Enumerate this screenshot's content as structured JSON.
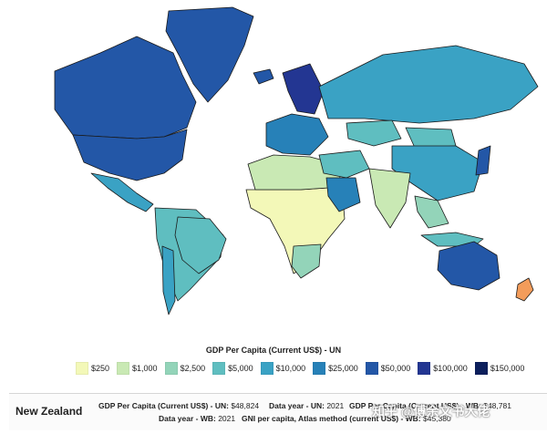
{
  "map": {
    "legend_title": "GDP Per Capita (Current US$) - UN",
    "legend": [
      {
        "label": "$250",
        "color": "#f3f8b8"
      },
      {
        "label": "$1,000",
        "color": "#c9e9b4"
      },
      {
        "label": "$2,500",
        "color": "#93d4b9"
      },
      {
        "label": "$5,000",
        "color": "#5fbec0"
      },
      {
        "label": "$10,000",
        "color": "#3aa2c4"
      },
      {
        "label": "$25,000",
        "color": "#2781b8"
      },
      {
        "label": "$50,000",
        "color": "#2357a7"
      },
      {
        "label": "$100,000",
        "color": "#233692"
      },
      {
        "label": "$150,000",
        "color": "#0c1f5c"
      }
    ],
    "regions": [
      {
        "name": "Canada",
        "color": "#2357a7"
      },
      {
        "name": "United States",
        "color": "#2357a7"
      },
      {
        "name": "Mexico",
        "color": "#3aa2c4"
      },
      {
        "name": "Greenland",
        "color": "#2357a7"
      },
      {
        "name": "South America",
        "color": "#5fbec0"
      },
      {
        "name": "Brazil",
        "color": "#5fbec0"
      },
      {
        "name": "Chile",
        "color": "#3aa2c4"
      },
      {
        "name": "Africa",
        "color": "#f3f8b8"
      },
      {
        "name": "North Africa",
        "color": "#c9e9b4"
      },
      {
        "name": "Southern Africa",
        "color": "#93d4b9"
      },
      {
        "name": "Europe",
        "color": "#2781b8"
      },
      {
        "name": "Nordic",
        "color": "#233692"
      },
      {
        "name": "Russia",
        "color": "#3aa2c4"
      },
      {
        "name": "Kazakhstan",
        "color": "#5fbec0"
      },
      {
        "name": "Mongolia",
        "color": "#5fbec0"
      },
      {
        "name": "China",
        "color": "#3aa2c4"
      },
      {
        "name": "India",
        "color": "#c9e9b4"
      },
      {
        "name": "Middle East",
        "color": "#5fbec0"
      },
      {
        "name": "Arabian Peninsula",
        "color": "#2781b8"
      },
      {
        "name": "Southeast Asia",
        "color": "#93d4b9"
      },
      {
        "name": "Japan",
        "color": "#2357a7"
      },
      {
        "name": "Indonesia",
        "color": "#5fbec0"
      },
      {
        "name": "Australia",
        "color": "#2357a7"
      },
      {
        "name": "New Zealand",
        "color": "#f39c5a"
      },
      {
        "name": "Iceland",
        "color": "#2357a7"
      }
    ]
  },
  "info": {
    "country": "New Zealand",
    "gdp_un_label": "GDP Per Capita (Current US$) - UN:",
    "gdp_un_value": "$48,824",
    "data_year_un_label": "Data year - UN:",
    "data_year_un_value": "2021",
    "gdp_wb_label": "GDP Per Capita (Current US$) - WB:",
    "gdp_wb_value": "$48,781",
    "data_year_wb_label": "Data year - WB:",
    "data_year_wb_value": "2021",
    "gni_label": "GNI per capita, Atlas method (current US$) - WB:",
    "gni_value": "$45,380"
  },
  "watermark": "知乎 @傅余文书大佬"
}
